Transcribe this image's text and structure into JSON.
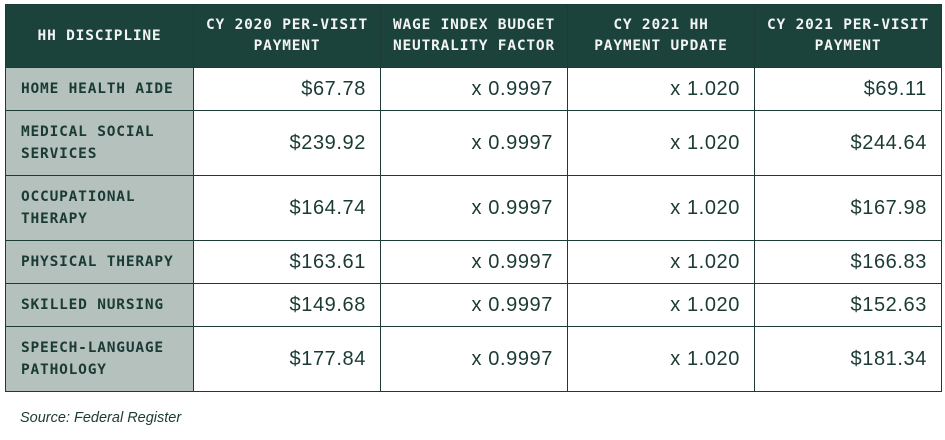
{
  "table": {
    "headers": [
      "HH DISCIPLINE",
      "CY 2020 PER-VISIT PAYMENT",
      "WAGE INDEX BUDGET NEUTRALITY FACTOR",
      "CY 2021 HH PAYMENT UPDATE",
      "CY 2021 PER-VISIT PAYMENT"
    ],
    "rows": [
      [
        "HOME HEALTH AIDE",
        "$67.78",
        "x 0.9997",
        "x 1.020",
        "$69.11"
      ],
      [
        "MEDICAL SOCIAL SERVICES",
        "$239.92",
        "x 0.9997",
        "x 1.020",
        "$244.64"
      ],
      [
        "OCCUPATIONAL THERAPY",
        "$164.74",
        "x 0.9997",
        "x 1.020",
        "$167.98"
      ],
      [
        "PHYSICAL THERAPY",
        "$163.61",
        "x 0.9997",
        "x 1.020",
        "$166.83"
      ],
      [
        "SKILLED NURSING",
        "$149.68",
        "x 0.9997",
        "x 1.020",
        "$152.63"
      ],
      [
        "SPEECH-LANGUAGE PATHOLOGY",
        "$177.84",
        "x 0.9997",
        "x 1.020",
        "$181.34"
      ]
    ]
  },
  "source": "Source: Federal Register",
  "colors": {
    "header_bg": "#1b423b",
    "discipline_bg": "#b4c1bd",
    "text": "#1b3a34"
  }
}
